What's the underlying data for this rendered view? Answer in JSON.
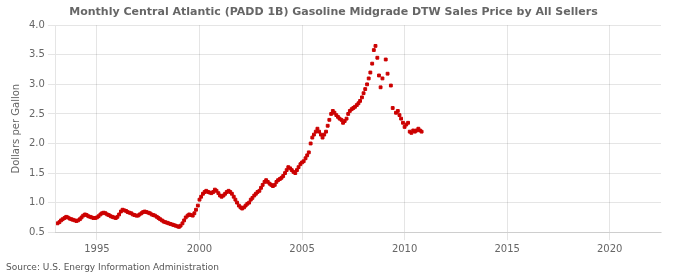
{
  "chart_data": {
    "type": "scatter",
    "title": "Monthly Central Atlantic (PADD 1B) Gasoline Midgrade DTW Sales Price by All Sellers",
    "ylabel": "Dollars per Gallon",
    "source": "Source: U.S. Energy Information Administration",
    "color": "#CC0000",
    "marker": "square",
    "grid": true,
    "xlim": [
      1993.0,
      2022.5
    ],
    "xticks": [
      1995,
      2000,
      2005,
      2010,
      2015,
      2020
    ],
    "ylim": [
      0.5,
      4.0
    ],
    "yticks": [
      0.5,
      {
        "value": 1.0,
        "label": "1.0"
      },
      1.5,
      {
        "value": 2.0,
        "label": "2.0"
      },
      2.5,
      {
        "value": 3.0,
        "label": "3.0"
      },
      3.5,
      {
        "value": 4.0,
        "label": "4.0"
      }
    ],
    "x": [
      1993.08,
      1993.17,
      1993.25,
      1993.33,
      1993.42,
      1993.5,
      1993.58,
      1993.67,
      1993.75,
      1993.83,
      1993.92,
      1994.0,
      1994.08,
      1994.17,
      1994.25,
      1994.33,
      1994.42,
      1994.5,
      1994.58,
      1994.67,
      1994.75,
      1994.83,
      1994.92,
      1995.0,
      1995.08,
      1995.17,
      1995.25,
      1995.33,
      1995.42,
      1995.5,
      1995.58,
      1995.67,
      1995.75,
      1995.83,
      1995.92,
      1996.0,
      1996.08,
      1996.17,
      1996.25,
      1996.33,
      1996.42,
      1996.5,
      1996.58,
      1996.67,
      1996.75,
      1996.83,
      1996.92,
      1997.0,
      1997.08,
      1997.17,
      1997.25,
      1997.33,
      1997.42,
      1997.5,
      1997.58,
      1997.67,
      1997.75,
      1997.83,
      1997.92,
      1998.0,
      1998.08,
      1998.17,
      1998.25,
      1998.33,
      1998.42,
      1998.5,
      1998.58,
      1998.67,
      1998.75,
      1998.83,
      1998.92,
      1999.0,
      1999.08,
      1999.17,
      1999.25,
      1999.33,
      1999.42,
      1999.5,
      1999.58,
      1999.67,
      1999.75,
      1999.83,
      1999.92,
      2000.0,
      2000.08,
      2000.17,
      2000.25,
      2000.33,
      2000.42,
      2000.5,
      2000.58,
      2000.67,
      2000.75,
      2000.83,
      2000.92,
      2001.0,
      2001.08,
      2001.17,
      2001.25,
      2001.33,
      2001.42,
      2001.5,
      2001.58,
      2001.67,
      2001.75,
      2001.83,
      2001.92,
      2002.0,
      2002.08,
      2002.17,
      2002.25,
      2002.33,
      2002.42,
      2002.5,
      2002.58,
      2002.67,
      2002.75,
      2002.83,
      2002.92,
      2003.0,
      2003.08,
      2003.17,
      2003.25,
      2003.33,
      2003.42,
      2003.5,
      2003.58,
      2003.67,
      2003.75,
      2003.83,
      2003.92,
      2004.0,
      2004.08,
      2004.17,
      2004.25,
      2004.33,
      2004.42,
      2004.5,
      2004.58,
      2004.67,
      2004.75,
      2004.83,
      2004.92,
      2005.0,
      2005.08,
      2005.17,
      2005.25,
      2005.33,
      2005.42,
      2005.5,
      2005.58,
      2005.67,
      2005.75,
      2005.83,
      2005.92,
      2006.0,
      2006.08,
      2006.17,
      2006.25,
      2006.33,
      2006.42,
      2006.5,
      2006.58,
      2006.67,
      2006.75,
      2006.83,
      2006.92,
      2007.0,
      2007.08,
      2007.17,
      2007.25,
      2007.33,
      2007.42,
      2007.5,
      2007.58,
      2007.67,
      2007.75,
      2007.83,
      2007.92,
      2008.0,
      2008.08,
      2008.17,
      2008.25,
      2008.33,
      2008.42,
      2008.5,
      2008.58,
      2008.67,
      2008.75,
      2008.83,
      2008.92,
      2009.08,
      2009.17,
      2009.33,
      2009.42,
      2009.58,
      2009.67,
      2009.75,
      2009.83,
      2009.92,
      2010.0,
      2010.08,
      2010.17,
      2010.25,
      2010.33,
      2010.42,
      2010.5,
      2010.58,
      2010.67,
      2010.75,
      2010.83
    ],
    "values": [
      0.65,
      0.67,
      0.7,
      0.72,
      0.74,
      0.76,
      0.75,
      0.73,
      0.72,
      0.71,
      0.7,
      0.69,
      0.7,
      0.72,
      0.75,
      0.78,
      0.8,
      0.79,
      0.77,
      0.76,
      0.75,
      0.74,
      0.74,
      0.75,
      0.77,
      0.8,
      0.82,
      0.83,
      0.82,
      0.8,
      0.79,
      0.77,
      0.76,
      0.75,
      0.74,
      0.76,
      0.8,
      0.85,
      0.88,
      0.87,
      0.86,
      0.84,
      0.83,
      0.82,
      0.8,
      0.79,
      0.78,
      0.78,
      0.8,
      0.82,
      0.84,
      0.85,
      0.84,
      0.83,
      0.82,
      0.8,
      0.79,
      0.78,
      0.76,
      0.74,
      0.72,
      0.7,
      0.68,
      0.67,
      0.66,
      0.65,
      0.64,
      0.63,
      0.62,
      0.61,
      0.6,
      0.59,
      0.61,
      0.65,
      0.7,
      0.75,
      0.78,
      0.8,
      0.79,
      0.78,
      0.82,
      0.88,
      0.95,
      1.05,
      1.1,
      1.15,
      1.18,
      1.2,
      1.18,
      1.17,
      1.16,
      1.18,
      1.22,
      1.2,
      1.16,
      1.12,
      1.1,
      1.12,
      1.15,
      1.18,
      1.2,
      1.18,
      1.15,
      1.1,
      1.05,
      1.0,
      0.95,
      0.92,
      0.9,
      0.92,
      0.95,
      0.98,
      1.0,
      1.05,
      1.08,
      1.12,
      1.15,
      1.18,
      1.2,
      1.25,
      1.3,
      1.35,
      1.38,
      1.35,
      1.32,
      1.3,
      1.28,
      1.3,
      1.35,
      1.38,
      1.4,
      1.42,
      1.45,
      1.5,
      1.55,
      1.6,
      1.58,
      1.55,
      1.52,
      1.5,
      1.55,
      1.6,
      1.65,
      1.68,
      1.7,
      1.75,
      1.8,
      1.85,
      2.0,
      2.1,
      2.15,
      2.2,
      2.25,
      2.2,
      2.15,
      2.1,
      2.15,
      2.2,
      2.3,
      2.4,
      2.5,
      2.55,
      2.52,
      2.48,
      2.45,
      2.42,
      2.4,
      2.35,
      2.38,
      2.42,
      2.5,
      2.55,
      2.58,
      2.6,
      2.62,
      2.65,
      2.68,
      2.72,
      2.78,
      2.85,
      2.92,
      3.0,
      3.1,
      3.2,
      3.35,
      3.58,
      3.65,
      3.45,
      3.15,
      2.95,
      3.1,
      3.42,
      3.18,
      2.98,
      2.6,
      2.52,
      2.55,
      2.48,
      2.42,
      2.35,
      2.28,
      2.32,
      2.35,
      2.2,
      2.18,
      2.22,
      2.2,
      2.22,
      2.25,
      2.22,
      2.2
    ]
  }
}
